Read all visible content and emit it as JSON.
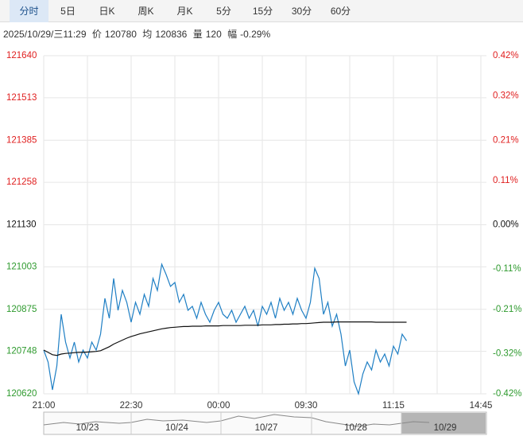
{
  "tabs": [
    "分时",
    "5日",
    "日K",
    "周K",
    "月K",
    "5分",
    "15分",
    "30分",
    "60分"
  ],
  "info": {
    "datetime": "2025/10/29/三11:29",
    "price_label": "价",
    "price": "120780",
    "avg_label": "均",
    "avg": "120836",
    "vol_label": "量",
    "vol": "120",
    "change_label": "幅",
    "change": "-0.29%"
  },
  "chart_data": {
    "type": "line",
    "categories": [
      "21:00",
      null,
      null,
      null,
      null,
      null,
      null,
      null,
      null,
      null,
      null,
      null,
      null,
      null,
      null,
      null,
      null,
      null,
      null,
      null,
      "22:30",
      null,
      null,
      null,
      null,
      null,
      null,
      null,
      null,
      null,
      null,
      null,
      null,
      null,
      null,
      null,
      null,
      null,
      null,
      null,
      "00:00",
      null,
      null,
      null,
      null,
      null,
      null,
      null,
      null,
      null,
      null,
      null,
      null,
      null,
      null,
      null,
      null,
      null,
      null,
      null,
      "09:30",
      null,
      null,
      null,
      null,
      null,
      null,
      null,
      null,
      null,
      null,
      null,
      null,
      null,
      null,
      null,
      null,
      null,
      null,
      null,
      "11:15",
      null,
      null,
      null,
      null,
      null,
      null,
      null,
      null,
      null,
      null,
      null,
      null,
      null,
      null,
      null,
      null,
      null,
      null,
      null,
      "14:45"
    ],
    "series": [
      {
        "color": "#1f7fc4",
        "values": [
          120752,
          120716,
          120632,
          120704,
          120860,
          120776,
          120728,
          120776,
          120716,
          120752,
          120728,
          120776,
          120752,
          120800,
          120908,
          120848,
          120968,
          120872,
          120932,
          120896,
          120836,
          120896,
          120860,
          120920,
          120884,
          120968,
          120932,
          121011,
          120980,
          120944,
          120956,
          120896,
          120920,
          120872,
          120884,
          120848,
          120896,
          120860,
          120836,
          120872,
          120896,
          120860,
          120848,
          120872,
          120836,
          120860,
          120884,
          120848,
          120872,
          120824,
          120884,
          120860,
          120896,
          120848,
          120908,
          120872,
          120896,
          120860,
          120908,
          120872,
          120848,
          120896,
          120999,
          120968,
          120860,
          120896,
          120824,
          120860,
          120800,
          120704,
          120752,
          120656,
          120620,
          120680,
          120716,
          120692,
          120752,
          120716,
          120740,
          120704,
          120764,
          120740,
          120800,
          120780,
          null,
          null,
          null,
          null,
          null,
          null,
          null,
          null,
          null,
          null,
          null,
          null,
          null,
          null,
          null,
          null,
          null
        ]
      },
      {
        "color": "#111111",
        "values": [
          120752,
          120745,
          120738,
          120736,
          120740,
          120742,
          120743,
          120744,
          120745,
          120745,
          120746,
          120747,
          120748,
          120750,
          120756,
          120762,
          120770,
          120776,
          120782,
          120788,
          120793,
          120797,
          120801,
          120804,
          120807,
          120810,
          120813,
          120816,
          120818,
          120820,
          120821,
          120822,
          120823,
          120823,
          120824,
          120824,
          120824,
          120825,
          120825,
          120825,
          120825,
          120826,
          120826,
          120826,
          120826,
          120826,
          120827,
          120827,
          120827,
          120827,
          120828,
          120828,
          120828,
          120829,
          120829,
          120830,
          120830,
          120831,
          120831,
          120832,
          120832,
          120833,
          120834,
          120835,
          120836,
          120836,
          120836,
          120837,
          120837,
          120837,
          120837,
          120837,
          120837,
          120837,
          120837,
          120837,
          120836,
          120836,
          120836,
          120836,
          120836,
          120836,
          120836,
          120836,
          null,
          null,
          null,
          null,
          null,
          null,
          null,
          null,
          null,
          null,
          null,
          null,
          null,
          null,
          null,
          null,
          null
        ]
      }
    ],
    "ylim": [
      120620,
      121640
    ],
    "yticks": [
      121640,
      121513,
      121385,
      121258,
      121130,
      121003,
      120875,
      120748,
      120620
    ],
    "y2lim": [
      -0.42,
      0.42
    ],
    "y2ticks": [
      {
        "value": 0.42,
        "label": "0.42%"
      },
      {
        "value": 0.32,
        "label": "0.32%"
      },
      {
        "value": 0.21,
        "label": "0.21%"
      },
      {
        "value": 0.11,
        "label": "0.11%"
      },
      {
        "value": 0,
        "label": "0.00%"
      },
      {
        "value": -0.11,
        "label": "-0.11%"
      },
      {
        "value": -0.21,
        "label": "-0.21%"
      },
      {
        "value": -0.32,
        "label": "-0.32%"
      },
      {
        "value": -0.42,
        "label": "-0.42%"
      }
    ],
    "base": 121130,
    "up_color": "#e02020",
    "down_color": "#2e9a2e",
    "flat_color": "#111111",
    "grid": true
  },
  "navigator": {
    "dates": [
      "10/23",
      "10/24",
      "10/27",
      "10/28",
      "10/29"
    ]
  }
}
